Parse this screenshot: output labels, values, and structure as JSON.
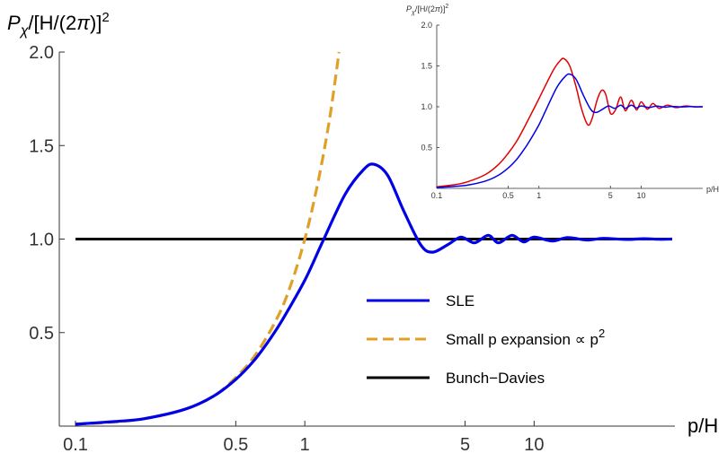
{
  "chart_data": [
    {
      "type": "line",
      "title": "",
      "x_scale": "log",
      "xlim": [
        0.1,
        40
      ],
      "ylim": [
        0,
        2.0
      ],
      "ylabel_parts": {
        "p": "P",
        "chi": "χ",
        "mid": "/[H/(2",
        "pi": "π",
        "end": ")]",
        "sup": "2"
      },
      "xlabel": "p/H",
      "x_ticks": [
        {
          "value": 0.1,
          "label": "0.1"
        },
        {
          "value": 0.5,
          "label": "0.5"
        },
        {
          "value": 1,
          "label": "1"
        },
        {
          "value": 5,
          "label": "5"
        },
        {
          "value": 10,
          "label": "10"
        }
      ],
      "y_ticks": [
        {
          "value": 0.5,
          "label": "0.5"
        },
        {
          "value": 1.0,
          "label": "1.0"
        },
        {
          "value": 1.5,
          "label": "1.5"
        },
        {
          "value": 2.0,
          "label": "2.0"
        }
      ],
      "legend_position": "right",
      "series": [
        {
          "name": "SLE",
          "color": "#0000e6",
          "style": "solid",
          "x": [
            0.1,
            0.15,
            0.2,
            0.3,
            0.4,
            0.5,
            0.6,
            0.7,
            0.8,
            1.0,
            1.2,
            1.5,
            1.8,
            2.0,
            2.3,
            2.7,
            3.2,
            3.6,
            4.2,
            4.8,
            5.5,
            6.3,
            7.0,
            8.0,
            9.0,
            10.0,
            12.0,
            14.0,
            17.0,
            20.0,
            25.0,
            30.0,
            35.0,
            40.0
          ],
          "y": [
            0.01,
            0.025,
            0.04,
            0.09,
            0.16,
            0.25,
            0.35,
            0.46,
            0.57,
            0.78,
            0.99,
            1.24,
            1.37,
            1.4,
            1.34,
            1.15,
            0.97,
            0.93,
            0.97,
            1.01,
            0.98,
            1.02,
            0.98,
            1.02,
            0.985,
            1.01,
            0.99,
            1.008,
            0.995,
            1.004,
            0.998,
            1.002,
            0.999,
            1.0
          ]
        },
        {
          "name": "Small p expansion ∝ p",
          "name_sup": "2",
          "color": "#e0a028",
          "style": "dashed",
          "x": [
            0.1,
            0.15,
            0.2,
            0.3,
            0.4,
            0.5,
            0.6,
            0.7,
            0.8,
            0.9,
            1.0,
            1.1,
            1.2,
            1.3,
            1.41
          ],
          "y": [
            0.01,
            0.0225,
            0.04,
            0.09,
            0.16,
            0.26,
            0.37,
            0.5,
            0.64,
            0.81,
            1.0,
            1.21,
            1.44,
            1.69,
            2.0
          ]
        },
        {
          "name": "Bunch−Davies",
          "color": "#000000",
          "style": "solid",
          "x": [
            0.1,
            40
          ],
          "y": [
            1.0,
            1.0
          ]
        }
      ]
    },
    {
      "type": "line",
      "title": "",
      "x_scale": "log",
      "xlim": [
        0.1,
        40
      ],
      "ylim": [
        0,
        2.0
      ],
      "ylabel_parts": {
        "p": "P",
        "chi": "χ",
        "mid": "/[H/(2",
        "pi": "π",
        "end": ")]",
        "sup": "2"
      },
      "xlabel": "p/H",
      "x_ticks": [
        {
          "value": 0.1,
          "label": "0.1"
        },
        {
          "value": 0.5,
          "label": "0.5"
        },
        {
          "value": 1,
          "label": "1"
        },
        {
          "value": 5,
          "label": "5"
        },
        {
          "value": 10,
          "label": "10"
        }
      ],
      "y_ticks": [
        {
          "value": 0.5,
          "label": "0.5"
        },
        {
          "value": 1.0,
          "label": "1.0"
        },
        {
          "value": 1.5,
          "label": "1.5"
        },
        {
          "value": 2.0,
          "label": "2.0"
        }
      ],
      "series": [
        {
          "color": "#e00000",
          "x": [
            0.1,
            0.15,
            0.2,
            0.3,
            0.4,
            0.5,
            0.6,
            0.7,
            0.8,
            1.0,
            1.2,
            1.4,
            1.6,
            1.75,
            2.0,
            2.3,
            2.6,
            3.0,
            3.3,
            3.7,
            4.1,
            4.5,
            5.0,
            5.6,
            6.3,
            7.0,
            8.0,
            9.0,
            10.0,
            11.5,
            13.0,
            15.0,
            18.0,
            22.0,
            27.0,
            33.0,
            40.0
          ],
          "y": [
            0.02,
            0.045,
            0.08,
            0.17,
            0.29,
            0.43,
            0.57,
            0.72,
            0.86,
            1.1,
            1.3,
            1.46,
            1.56,
            1.59,
            1.5,
            1.25,
            0.98,
            0.78,
            0.85,
            1.08,
            1.2,
            1.15,
            0.92,
            0.96,
            1.12,
            0.95,
            1.08,
            0.96,
            1.06,
            0.97,
            1.04,
            0.98,
            1.02,
            0.99,
            1.01,
            1.0,
            1.0
          ]
        },
        {
          "color": "#0000e6",
          "x": [
            0.1,
            0.15,
            0.2,
            0.3,
            0.4,
            0.5,
            0.6,
            0.7,
            0.8,
            1.0,
            1.2,
            1.5,
            1.8,
            2.0,
            2.3,
            2.7,
            3.2,
            3.6,
            4.2,
            4.8,
            5.5,
            6.3,
            7.0,
            8.0,
            9.0,
            10.0,
            12.0,
            14.0,
            17.0,
            20.0,
            25.0,
            30.0,
            35.0,
            40.0
          ],
          "y": [
            0.01,
            0.025,
            0.04,
            0.09,
            0.16,
            0.25,
            0.35,
            0.46,
            0.57,
            0.78,
            0.99,
            1.24,
            1.37,
            1.4,
            1.34,
            1.15,
            0.97,
            0.93,
            0.97,
            1.01,
            0.98,
            1.02,
            0.98,
            1.02,
            0.985,
            1.01,
            0.99,
            1.008,
            0.995,
            1.004,
            0.998,
            1.002,
            0.999,
            1.0
          ]
        }
      ]
    }
  ]
}
